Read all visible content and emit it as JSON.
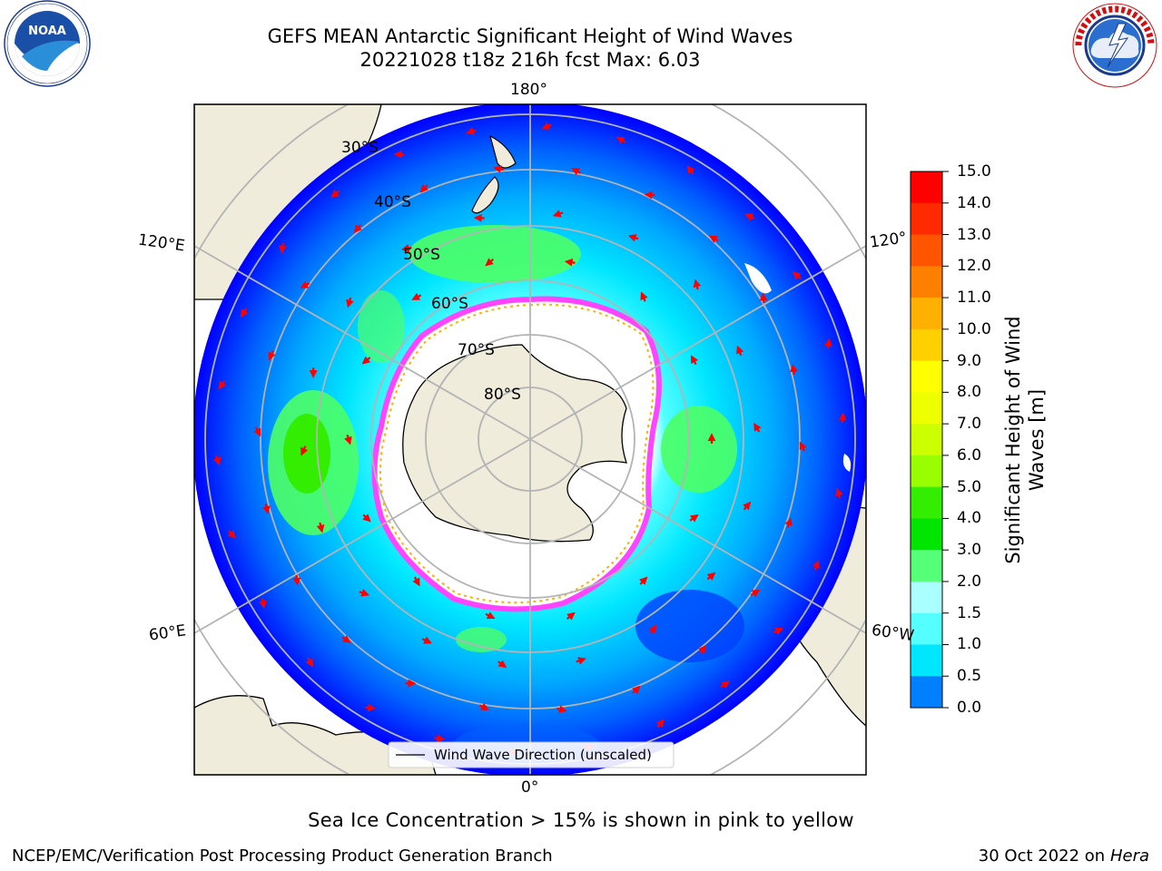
{
  "title": {
    "line1": "GEFS MEAN Antarctic Significant Height of Wind Waves",
    "line2": "20221028 t18z 216h fcst   Max: 6.03"
  },
  "logos": {
    "noaa": {
      "text": "NOAA",
      "ring_top": "NATIONAL OCEANIC AND ATMOSPHERIC ADMINISTRATION",
      "ring_bottom": "U.S. DEPARTMENT OF COMMERCE"
    },
    "nws": {
      "ring_text": "NATIONAL WEATHER SERVICE"
    }
  },
  "map": {
    "lon_labels": [
      "180°",
      "120°E",
      "120°",
      "60°E",
      "60°W",
      "0°"
    ],
    "lat_labels": [
      "30°S",
      "40°S",
      "50°S",
      "60°S",
      "70°S",
      "80°S"
    ],
    "legend": "Wind Wave Direction (unscaled)",
    "colors": {
      "ocean_low": "#0000ff",
      "ocean_mid": "#00e6ff",
      "ocean_high": "#4dff66",
      "land": "#efecdc",
      "ice_edge": "#ff44ff",
      "arrow": "#ff0000"
    }
  },
  "colorbar": {
    "label": "Significant Height of Wind Waves [m]",
    "ticks": [
      "15.0",
      "14.0",
      "13.0",
      "12.0",
      "11.0",
      "10.0",
      "9.0",
      "8.0",
      "7.0",
      "6.0",
      "5.0",
      "4.0",
      "3.0",
      "2.0",
      "1.5",
      "1.0",
      "0.5",
      "0.0"
    ],
    "colors": [
      "#ff0000",
      "#ff2a00",
      "#ff5500",
      "#ff8000",
      "#ffb000",
      "#ffd000",
      "#ffff00",
      "#eeff00",
      "#ccff00",
      "#99ff00",
      "#33ee00",
      "#00e600",
      "#55ff77",
      "#aaffff",
      "#55ffff",
      "#00e6ff",
      "#0080ff",
      "#0000ff"
    ]
  },
  "caption": "Sea Ice Concentration > 15% is shown in pink to yellow",
  "footer": {
    "left": "NCEP/EMC/Verification Post Processing Product Generation Branch",
    "right_prefix": "30 Oct 2022 on ",
    "right_italic": "Hera"
  }
}
